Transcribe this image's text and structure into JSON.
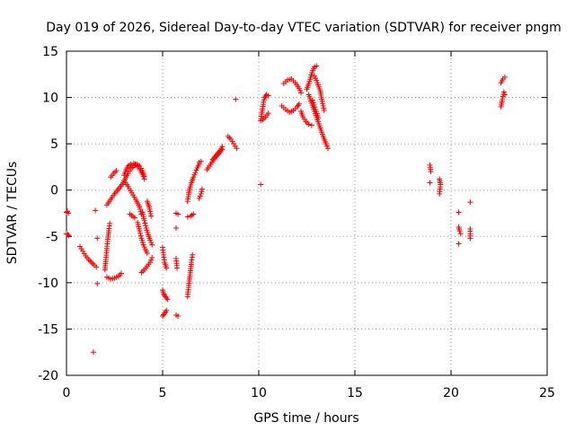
{
  "chart_data": {
    "type": "scatter",
    "title": "Day 019 of 2026, Sidereal Day-to-day VTEC variation (SDTVAR) for receiver pngm",
    "xlabel": "GPS time / hours",
    "ylabel": "SDTVAR / TECUs",
    "xlim": [
      0,
      25
    ],
    "ylim": [
      -20,
      15
    ],
    "xticks": [
      0,
      5,
      10,
      15,
      20,
      25
    ],
    "yticks": [
      -20,
      -15,
      -10,
      -5,
      0,
      5,
      10,
      15
    ],
    "grid": true,
    "marker": "+",
    "color": "#ff0000",
    "segments": [
      [
        [
          0.0,
          -2.4
        ],
        [
          0.05,
          -2.3
        ],
        [
          0.1,
          -2.5
        ]
      ],
      [
        [
          0.0,
          -4.7
        ],
        [
          0.07,
          -4.8
        ],
        [
          0.12,
          -4.9
        ]
      ],
      [
        [
          0.7,
          -6.1
        ],
        [
          0.85,
          -6.6
        ],
        [
          1.0,
          -7.1
        ],
        [
          1.15,
          -7.5
        ],
        [
          1.3,
          -7.8
        ],
        [
          1.45,
          -8.1
        ],
        [
          1.55,
          -8.3
        ]
      ],
      [
        [
          1.5,
          -2.2
        ]
      ],
      [
        [
          1.6,
          -5.2
        ]
      ],
      [
        [
          1.6,
          -10.1
        ]
      ],
      [
        [
          1.4,
          -17.5
        ]
      ],
      [
        [
          2.0,
          -8.6
        ],
        [
          2.05,
          -7.5
        ],
        [
          2.1,
          -6.3
        ],
        [
          2.15,
          -5.3
        ],
        [
          2.2,
          -4.4
        ],
        [
          2.25,
          -3.6
        ]
      ],
      [
        [
          2.1,
          -1.6
        ],
        [
          2.3,
          -1.0
        ],
        [
          2.5,
          -0.4
        ],
        [
          2.7,
          0.1
        ],
        [
          2.9,
          0.6
        ],
        [
          3.05,
          1.2
        ],
        [
          3.2,
          1.8
        ],
        [
          3.35,
          2.3
        ],
        [
          3.5,
          2.6
        ],
        [
          3.65,
          2.8
        ],
        [
          3.8,
          2.6
        ],
        [
          3.95,
          2.1
        ],
        [
          4.05,
          1.5
        ]
      ],
      [
        [
          2.1,
          -9.4
        ],
        [
          2.3,
          -9.6
        ],
        [
          2.5,
          -9.5
        ],
        [
          2.7,
          -9.3
        ],
        [
          2.85,
          -9.0
        ]
      ],
      [
        [
          2.3,
          1.4
        ],
        [
          2.45,
          1.8
        ],
        [
          2.6,
          2.1
        ]
      ],
      [
        [
          3.0,
          1.6
        ],
        [
          3.1,
          2.2
        ],
        [
          3.2,
          2.6
        ],
        [
          3.35,
          2.8
        ],
        [
          3.5,
          2.9
        ],
        [
          3.65,
          2.7
        ],
        [
          3.8,
          2.3
        ],
        [
          3.95,
          1.7
        ],
        [
          4.05,
          1.2
        ]
      ],
      [
        [
          3.0,
          1.0
        ],
        [
          3.2,
          0.4
        ],
        [
          3.4,
          -0.3
        ],
        [
          3.6,
          -1.0
        ],
        [
          3.8,
          -1.8
        ],
        [
          3.9,
          -2.6
        ]
      ],
      [
        [
          3.3,
          -2.6
        ],
        [
          3.55,
          -3.0
        ]
      ],
      [
        [
          3.7,
          -3.5
        ],
        [
          3.8,
          -4.4
        ],
        [
          3.9,
          -5.2
        ],
        [
          4.0,
          -5.9
        ],
        [
          4.1,
          -6.4
        ],
        [
          4.2,
          -6.8
        ]
      ],
      [
        [
          3.95,
          -2.4
        ],
        [
          4.05,
          -3.3
        ],
        [
          4.15,
          -4.1
        ],
        [
          4.25,
          -4.8
        ],
        [
          4.35,
          -5.4
        ],
        [
          4.45,
          -5.9
        ]
      ],
      [
        [
          3.9,
          -8.9
        ],
        [
          4.05,
          -8.6
        ],
        [
          4.2,
          -8.2
        ],
        [
          4.35,
          -7.8
        ],
        [
          4.45,
          -7.3
        ]
      ],
      [
        [
          4.2,
          -1.2
        ],
        [
          4.3,
          -1.8
        ],
        [
          4.4,
          -2.8
        ]
      ],
      [
        [
          5.0,
          -6.2
        ],
        [
          5.05,
          -7.0
        ],
        [
          5.1,
          -7.8
        ],
        [
          5.2,
          -8.4
        ]
      ],
      [
        [
          5.0,
          -10.8
        ],
        [
          5.05,
          -11.2
        ],
        [
          5.15,
          -11.5
        ],
        [
          5.25,
          -11.8
        ]
      ],
      [
        [
          5.0,
          -13.6
        ],
        [
          5.1,
          -13.3
        ],
        [
          5.2,
          -13.0
        ]
      ],
      [
        [
          5.7,
          -2.5
        ],
        [
          5.8,
          -2.6
        ]
      ],
      [
        [
          5.7,
          -4.1
        ]
      ],
      [
        [
          5.7,
          -7.4
        ],
        [
          5.75,
          -8.4
        ]
      ],
      [
        [
          5.7,
          -13.5
        ],
        [
          5.8,
          -13.6
        ]
      ],
      [
        [
          6.3,
          -11.5
        ],
        [
          6.35,
          -10.5
        ],
        [
          6.4,
          -9.6
        ],
        [
          6.45,
          -8.7
        ],
        [
          6.5,
          -7.8
        ],
        [
          6.55,
          -7.0
        ]
      ],
      [
        [
          6.3,
          -2.9
        ],
        [
          6.45,
          -2.8
        ],
        [
          6.6,
          -2.6
        ]
      ],
      [
        [
          6.3,
          -1.2
        ],
        [
          6.35,
          -0.5
        ],
        [
          6.4,
          0.1
        ],
        [
          6.5,
          0.8
        ],
        [
          6.6,
          1.4
        ],
        [
          6.7,
          1.9
        ],
        [
          6.8,
          2.4
        ],
        [
          6.9,
          2.8
        ]
      ],
      [
        [
          6.9,
          -0.9
        ],
        [
          7.0,
          -0.4
        ],
        [
          7.05,
          0.1
        ]
      ],
      [
        [
          6.9,
          3.0
        ],
        [
          7.0,
          3.1
        ]
      ],
      [
        [
          7.3,
          2.2
        ],
        [
          7.5,
          2.8
        ],
        [
          7.7,
          3.4
        ],
        [
          7.9,
          3.9
        ],
        [
          8.1,
          4.4
        ]
      ],
      [
        [
          7.6,
          3.3
        ],
        [
          7.8,
          3.8
        ],
        [
          8.0,
          4.3
        ],
        [
          8.1,
          4.7
        ]
      ],
      [
        [
          8.4,
          5.8
        ],
        [
          8.55,
          5.5
        ],
        [
          8.7,
          5.0
        ],
        [
          8.85,
          4.5
        ]
      ],
      [
        [
          8.8,
          9.8
        ]
      ],
      [
        [
          10.1,
          0.6
        ]
      ],
      [
        [
          10.1,
          7.5
        ],
        [
          10.15,
          8.2
        ],
        [
          10.2,
          8.8
        ],
        [
          10.25,
          9.5
        ],
        [
          10.3,
          10.0
        ],
        [
          10.4,
          10.3
        ],
        [
          10.5,
          10.2
        ]
      ],
      [
        [
          10.2,
          7.6
        ],
        [
          10.35,
          7.9
        ],
        [
          10.5,
          8.3
        ]
      ],
      [
        [
          11.2,
          9.1
        ],
        [
          11.4,
          8.7
        ],
        [
          11.6,
          8.4
        ],
        [
          11.8,
          8.6
        ],
        [
          12.0,
          9.0
        ],
        [
          12.1,
          9.3
        ]
      ],
      [
        [
          11.3,
          11.5
        ],
        [
          11.5,
          11.9
        ],
        [
          11.7,
          12.0
        ],
        [
          11.9,
          11.6
        ],
        [
          12.1,
          11.0
        ],
        [
          12.2,
          10.5
        ]
      ],
      [
        [
          12.2,
          8.5
        ],
        [
          12.3,
          7.9
        ],
        [
          12.45,
          7.4
        ],
        [
          12.6,
          7.1
        ],
        [
          12.75,
          7.0
        ]
      ],
      [
        [
          12.5,
          10.9
        ],
        [
          12.6,
          11.5
        ],
        [
          12.7,
          12.2
        ],
        [
          12.8,
          12.9
        ],
        [
          12.9,
          13.3
        ],
        [
          13.0,
          13.4
        ]
      ],
      [
        [
          12.6,
          10.3
        ],
        [
          12.75,
          9.4
        ],
        [
          12.9,
          8.5
        ],
        [
          13.05,
          7.6
        ],
        [
          13.2,
          6.7
        ],
        [
          13.35,
          5.8
        ],
        [
          13.5,
          5.0
        ],
        [
          13.6,
          4.5
        ]
      ],
      [
        [
          12.9,
          12.3
        ],
        [
          13.05,
          11.6
        ],
        [
          13.2,
          10.7
        ],
        [
          13.3,
          9.6
        ],
        [
          13.4,
          8.6
        ]
      ],
      [
        [
          12.8,
          9.7
        ],
        [
          12.95,
          8.7
        ],
        [
          13.1,
          7.8
        ]
      ],
      [
        [
          18.9,
          2.7
        ],
        [
          18.95,
          2.0
        ]
      ],
      [
        [
          18.9,
          0.8
        ]
      ],
      [
        [
          19.4,
          1.2
        ],
        [
          19.45,
          0.6
        ],
        [
          19.4,
          -0.4
        ]
      ],
      [
        [
          20.4,
          -2.4
        ]
      ],
      [
        [
          20.4,
          -4.0
        ],
        [
          20.45,
          -4.4
        ],
        [
          20.5,
          -4.7
        ]
      ],
      [
        [
          20.4,
          -5.8
        ]
      ],
      [
        [
          21.0,
          -1.3
        ]
      ],
      [
        [
          21.0,
          -4.2
        ],
        [
          21.0,
          -4.7
        ],
        [
          21.0,
          -5.2
        ]
      ],
      [
        [
          22.6,
          11.6
        ],
        [
          22.7,
          12.0
        ],
        [
          22.8,
          12.2
        ]
      ],
      [
        [
          22.6,
          9.0
        ],
        [
          22.65,
          9.6
        ],
        [
          22.7,
          10.1
        ],
        [
          22.75,
          10.6
        ],
        [
          22.8,
          10.3
        ]
      ]
    ]
  }
}
